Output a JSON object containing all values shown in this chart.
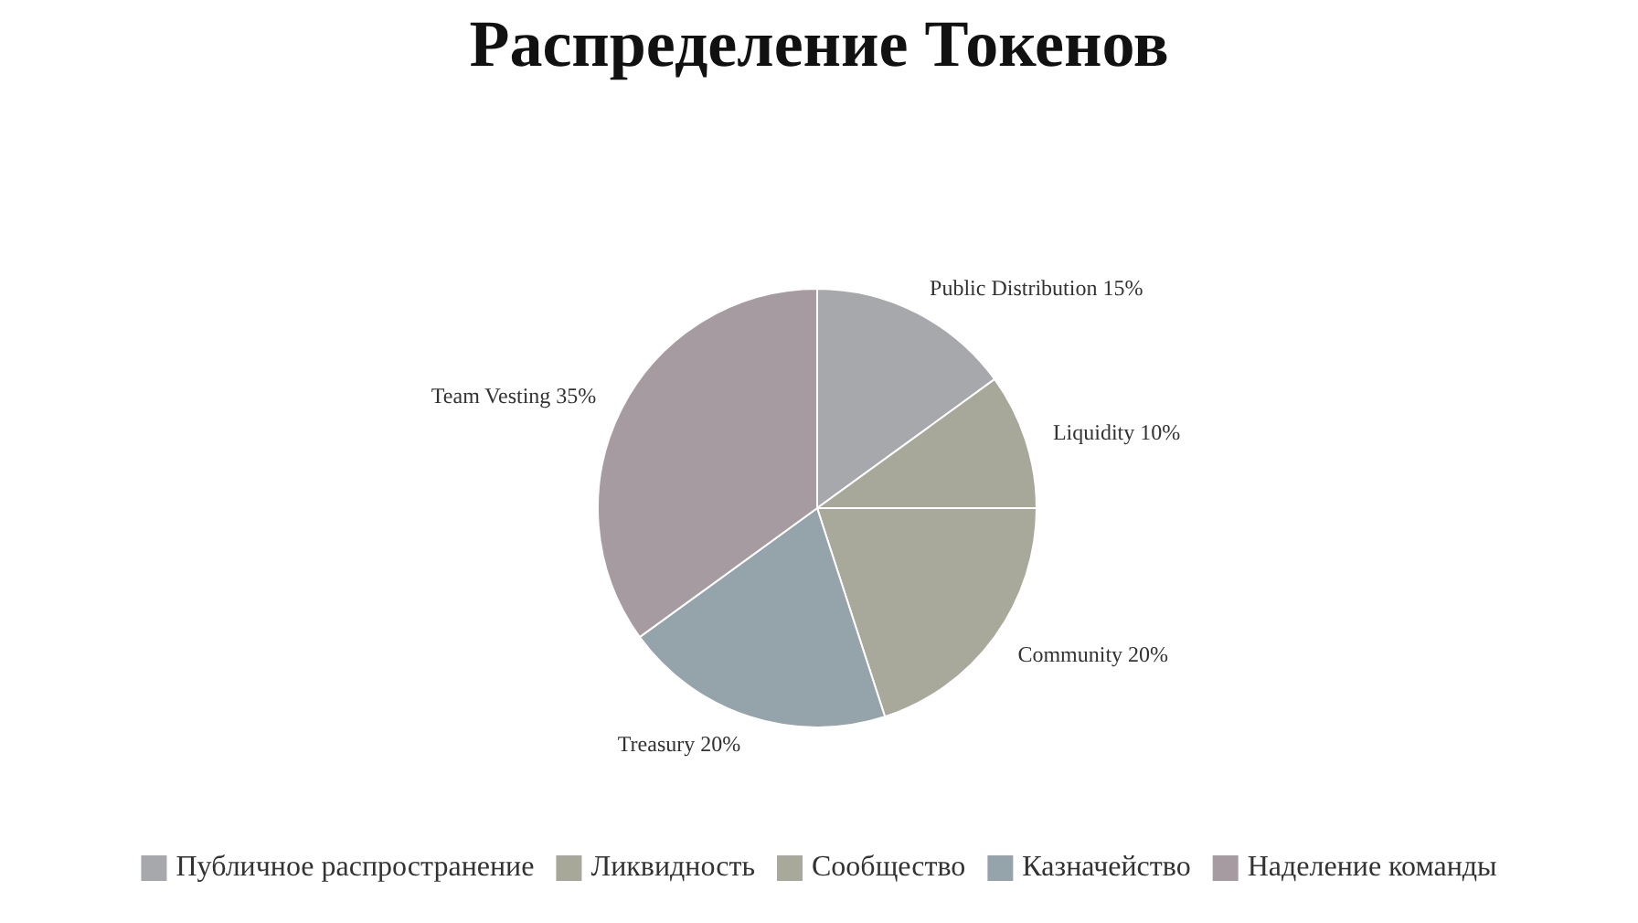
{
  "chart_data": {
    "type": "pie",
    "title": "Распределение Токенов",
    "categories": [
      "Публичное распространение",
      "Ликвидность",
      "Сообщество",
      "Казначейство",
      "Наделение команды"
    ],
    "values": [
      15,
      10,
      20,
      20,
      35
    ],
    "colors": [
      "#a7a8ab",
      "#a8a89a",
      "#a8a89b",
      "#95a3aa",
      "#a69ba1"
    ],
    "value_labels": [
      "Public Distribution 15%",
      "Liquidity 10%",
      "Community 20%",
      "Treasury 20%",
      "Team Vesting 35%"
    ],
    "legend": "bottom"
  }
}
